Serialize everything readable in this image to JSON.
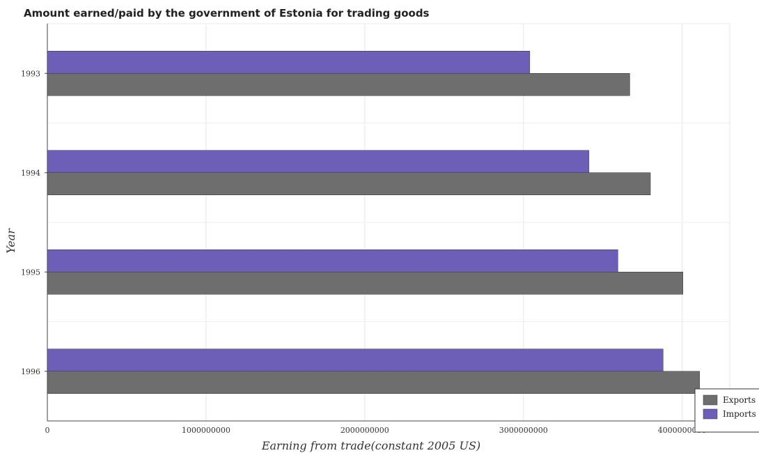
{
  "chart_data": {
    "type": "bar",
    "orientation": "horizontal",
    "title": "Amount earned/paid by the government of Estonia for trading goods",
    "xlabel": "Earning from trade(constant 2005 US)",
    "ylabel": "Year",
    "categories": [
      "1993",
      "1994",
      "1995",
      "1996"
    ],
    "series": [
      {
        "name": "Exports",
        "color": "#6e6e6e",
        "values": [
          3670000000,
          3800000000,
          4005000000,
          4110000000
        ]
      },
      {
        "name": "Imports",
        "color": "#6d5fb8",
        "values": [
          3040000000,
          3413000000,
          3595000000,
          3880000000
        ]
      }
    ],
    "xlim": [
      0,
      4300000000
    ],
    "xticks": [
      0,
      1000000000,
      2000000000,
      3000000000,
      4000000000
    ],
    "xtick_labels": [
      "0",
      "1000000000",
      "2000000000",
      "3000000000",
      "4000000000"
    ],
    "grid": true,
    "legend_position": "bottom-right"
  }
}
